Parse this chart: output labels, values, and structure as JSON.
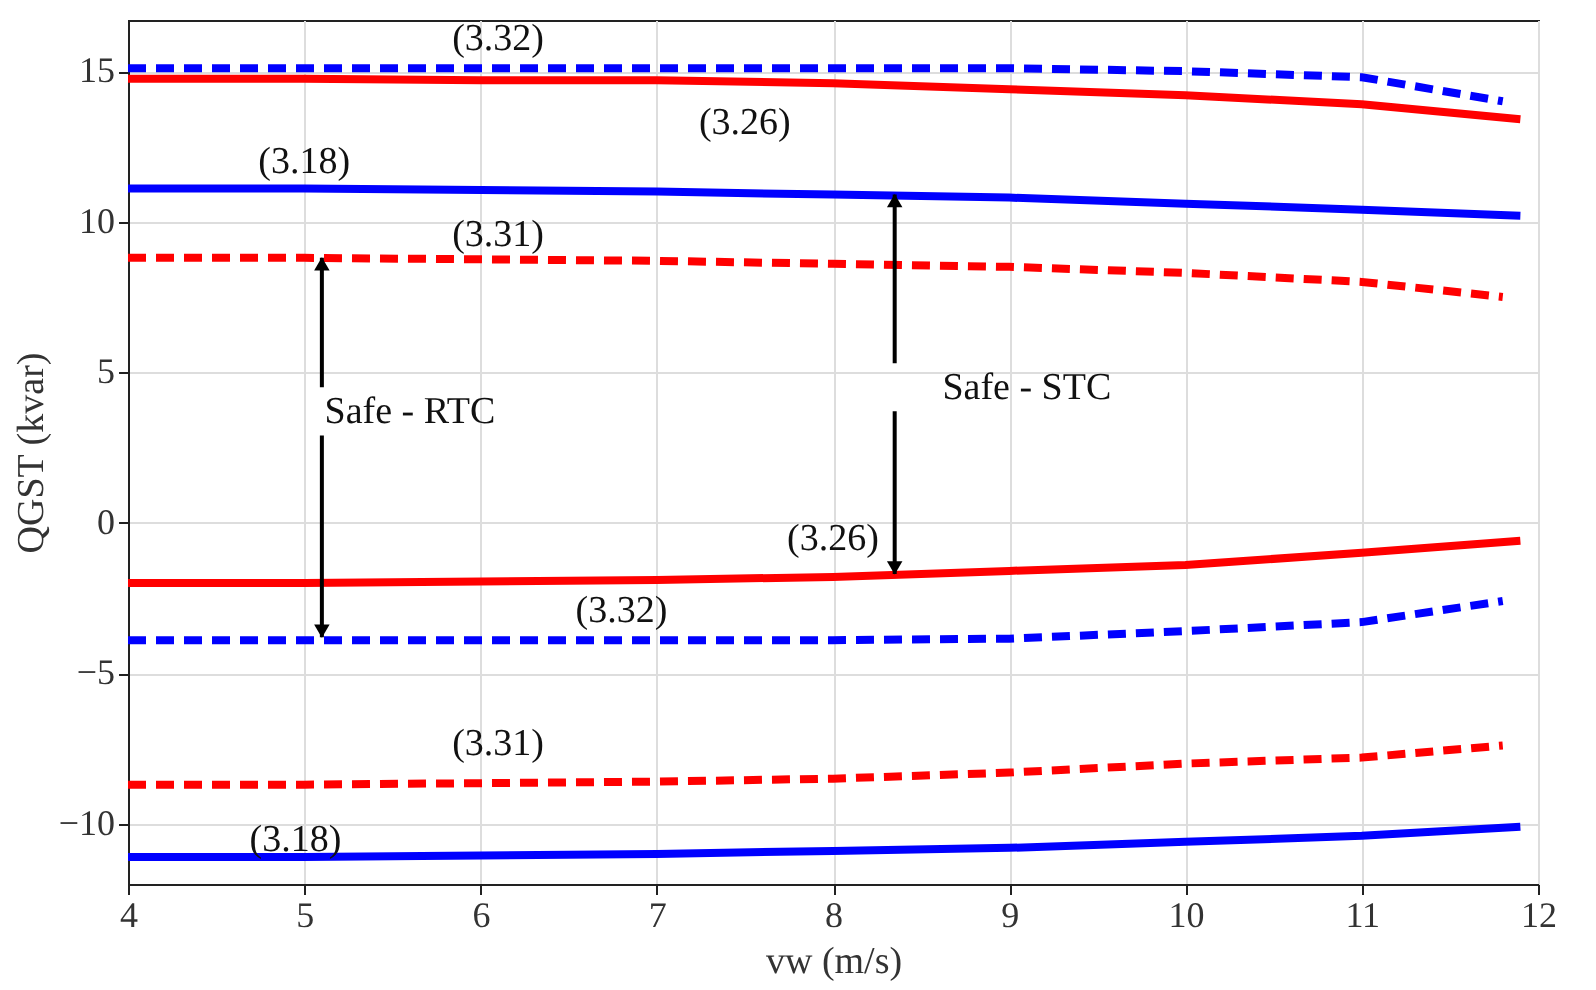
{
  "chart_data": {
    "type": "line",
    "xlabel": "vw (m/s)",
    "ylabel": "QGST (kvar)",
    "xlim": [
      4,
      12
    ],
    "ylim": [
      -12,
      16.7
    ],
    "xticks": [
      4,
      5,
      6,
      7,
      8,
      9,
      10,
      11,
      12
    ],
    "yticks": [
      -10,
      -5,
      0,
      5,
      10,
      15
    ],
    "grid": true,
    "marker": "none",
    "series": [
      {
        "color": "#0000ff",
        "line_style": "dashed",
        "x": [
          4,
          5,
          6,
          7,
          8,
          9,
          10,
          11,
          11.8
        ],
        "values": [
          15.1,
          15.1,
          15.1,
          15.1,
          15.1,
          15.1,
          15.0,
          14.8,
          14.0
        ]
      },
      {
        "color": "#ff0000",
        "line_style": "solid",
        "x": [
          4,
          5,
          6,
          7,
          8,
          9,
          10,
          11,
          11.9
        ],
        "values": [
          14.75,
          14.75,
          14.7,
          14.7,
          14.6,
          14.4,
          14.2,
          13.9,
          13.4
        ]
      },
      {
        "color": "#0000ff",
        "line_style": "solid",
        "x": [
          4,
          5,
          6,
          7,
          8,
          9,
          10,
          11,
          11.9
        ],
        "values": [
          11.1,
          11.1,
          11.05,
          11.0,
          10.9,
          10.8,
          10.6,
          10.4,
          10.2
        ]
      },
      {
        "color": "#ff0000",
        "line_style": "dashed",
        "x": [
          4,
          5,
          6,
          7,
          8,
          9,
          10,
          11,
          11.8
        ],
        "values": [
          8.8,
          8.8,
          8.75,
          8.7,
          8.6,
          8.5,
          8.3,
          8.0,
          7.5
        ]
      },
      {
        "color": "#ff0000",
        "line_style": "solid",
        "x": [
          4,
          5,
          6,
          7,
          8,
          9,
          10,
          11,
          11.9
        ],
        "values": [
          -2.0,
          -2.0,
          -1.95,
          -1.9,
          -1.8,
          -1.6,
          -1.4,
          -1.0,
          -0.6
        ]
      },
      {
        "color": "#0000ff",
        "line_style": "dashed",
        "x": [
          4,
          5,
          6,
          7,
          8,
          9,
          10,
          11,
          11.8
        ],
        "values": [
          -3.9,
          -3.9,
          -3.9,
          -3.9,
          -3.9,
          -3.85,
          -3.6,
          -3.3,
          -2.6
        ]
      },
      {
        "color": "#ff0000",
        "line_style": "dashed",
        "x": [
          4,
          5,
          6,
          7,
          8,
          9,
          10,
          11,
          11.8
        ],
        "values": [
          -8.7,
          -8.7,
          -8.65,
          -8.6,
          -8.5,
          -8.3,
          -8.0,
          -7.8,
          -7.4
        ]
      },
      {
        "color": "#0000ff",
        "line_style": "solid",
        "x": [
          4,
          5,
          6,
          7,
          8,
          9,
          10,
          11,
          11.9
        ],
        "values": [
          -11.1,
          -11.1,
          -11.05,
          -11.0,
          -10.9,
          -10.8,
          -10.6,
          -10.4,
          -10.1
        ]
      }
    ],
    "annotations": [
      "(3.32)",
      "(3.26)",
      "(3.18)",
      "(3.31)",
      {
        "text": "Safe - RTC",
        "x": 5.1,
        "y": 8.8
      },
      {
        "text": "Safe - STC",
        "x": 8.35,
        "y": 10.9
      },
      "(3.26)",
      "(3.32)",
      "(3.31)",
      "(3.18)"
    ]
  }
}
